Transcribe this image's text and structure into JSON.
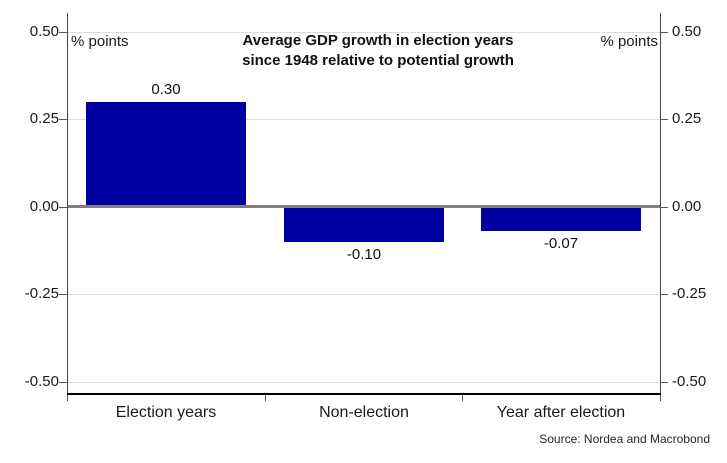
{
  "chart_data": {
    "type": "bar",
    "title_lines": [
      "Average GDP growth in election years",
      "since 1948 relative to potential growth"
    ],
    "categories": [
      "Election years",
      "Non-election",
      "Year after election"
    ],
    "values": [
      0.3,
      -0.1,
      -0.07
    ],
    "value_labels": [
      "0.30",
      "-0.10",
      "-0.07"
    ],
    "y_ticks": [
      0.5,
      0.25,
      0.0,
      -0.25,
      -0.5
    ],
    "y_tick_labels": [
      "0.50",
      "0.25",
      "0.00",
      "-0.25",
      "-0.50"
    ],
    "ylim": [
      -0.55,
      0.55
    ],
    "xlabel": "",
    "ylabel_left": "% points",
    "ylabel_right": "% points",
    "grid": true,
    "legend_position": "none",
    "bar_color": "#0000a0",
    "source": "Source: Nordea and Macrobond"
  }
}
